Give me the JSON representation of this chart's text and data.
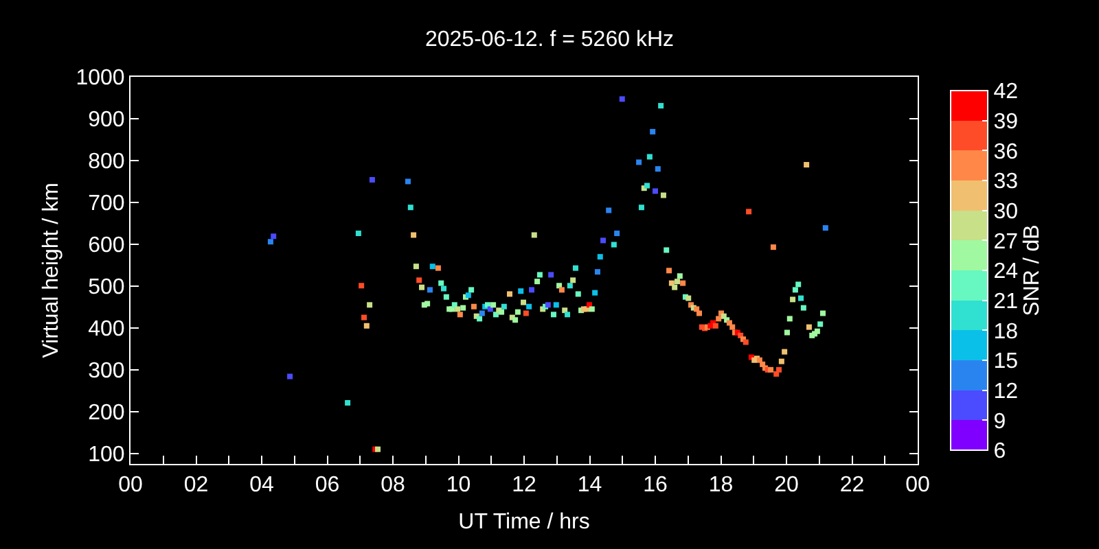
{
  "chart_data": {
    "type": "scatter",
    "title": "2025-06-12. f = 5260 kHz",
    "xlabel": "UT Time / hrs",
    "ylabel": "Virtual height / km",
    "clabel": "SNR / dB",
    "xlim": [
      0,
      24
    ],
    "xticks": [
      {
        "value": 0,
        "label": "00"
      },
      {
        "value": 1,
        "label": null
      },
      {
        "value": 2,
        "label": "02"
      },
      {
        "value": 3,
        "label": null
      },
      {
        "value": 4,
        "label": "04"
      },
      {
        "value": 5,
        "label": null
      },
      {
        "value": 6,
        "label": "06"
      },
      {
        "value": 7,
        "label": null
      },
      {
        "value": 8,
        "label": "08"
      },
      {
        "value": 9,
        "label": null
      },
      {
        "value": 10,
        "label": "10"
      },
      {
        "value": 11,
        "label": null
      },
      {
        "value": 12,
        "label": "12"
      },
      {
        "value": 13,
        "label": null
      },
      {
        "value": 14,
        "label": "14"
      },
      {
        "value": 15,
        "label": null
      },
      {
        "value": 16,
        "label": "16"
      },
      {
        "value": 17,
        "label": null
      },
      {
        "value": 18,
        "label": "18"
      },
      {
        "value": 19,
        "label": null
      },
      {
        "value": 20,
        "label": "20"
      },
      {
        "value": 21,
        "label": null
      },
      {
        "value": 22,
        "label": "22"
      },
      {
        "value": 23,
        "label": null
      },
      {
        "value": 24,
        "label": "00"
      }
    ],
    "ylim": [
      75,
      1000
    ],
    "yticks": [
      100,
      200,
      300,
      400,
      500,
      600,
      700,
      800,
      900,
      1000
    ],
    "clim": [
      6,
      42
    ],
    "cticks": [
      6,
      9,
      12,
      15,
      18,
      21,
      24,
      27,
      30,
      33,
      36,
      39,
      42
    ],
    "grid": false,
    "legend": false,
    "marker": "square",
    "x": [
      4.27,
      4.36,
      4.86,
      6.62,
      6.95,
      7.04,
      7.12,
      7.2,
      7.29,
      7.37,
      7.46,
      7.54,
      8.46,
      8.54,
      8.63,
      8.71,
      8.8,
      8.88,
      8.96,
      9.05,
      9.13,
      9.21,
      9.38,
      9.47,
      9.55,
      9.63,
      9.72,
      9.8,
      9.88,
      9.97,
      10.05,
      10.14,
      10.22,
      10.3,
      10.39,
      10.47,
      10.55,
      10.64,
      10.72,
      10.81,
      10.89,
      10.97,
      11.06,
      11.14,
      11.23,
      11.31,
      11.39,
      11.56,
      11.64,
      11.73,
      11.81,
      11.9,
      11.98,
      12.06,
      12.15,
      12.23,
      12.31,
      12.4,
      12.48,
      12.57,
      12.65,
      12.73,
      12.82,
      12.9,
      12.98,
      13.07,
      13.15,
      13.24,
      13.32,
      13.4,
      13.49,
      13.57,
      13.65,
      13.74,
      13.82,
      13.91,
      13.99,
      14.07,
      14.16,
      14.24,
      14.32,
      14.41,
      14.58,
      14.74,
      14.83,
      14.99,
      15.5,
      15.58,
      15.66,
      15.75,
      15.83,
      15.92,
      16,
      16.08,
      16.17,
      16.25,
      16.34,
      16.42,
      16.5,
      16.59,
      16.67,
      16.75,
      16.84,
      16.92,
      17.01,
      17.09,
      17.17,
      17.26,
      17.34,
      17.42,
      17.51,
      17.59,
      17.68,
      17.76,
      17.84,
      17.93,
      18.01,
      18.09,
      18.18,
      18.26,
      18.35,
      18.43,
      18.51,
      18.6,
      18.68,
      18.76,
      18.85,
      18.93,
      19.02,
      19.1,
      19.18,
      19.27,
      19.35,
      19.43,
      19.52,
      19.6,
      19.69,
      19.77,
      19.85,
      19.94,
      20.02,
      20.1,
      20.19,
      20.27,
      20.36,
      20.44,
      20.52,
      20.61,
      20.69,
      20.78,
      20.86,
      20.94,
      21.03,
      21.11,
      21.19
    ],
    "values": [
      606,
      619,
      284,
      221,
      626,
      501,
      425,
      405,
      455,
      754,
      110,
      110,
      750,
      688,
      622,
      547,
      514,
      497,
      455,
      458,
      491,
      547,
      543,
      507,
      494,
      474,
      445,
      445,
      455,
      445,
      432,
      448,
      474,
      478,
      491,
      451,
      428,
      422,
      435,
      451,
      455,
      445,
      455,
      432,
      442,
      438,
      451,
      481,
      425,
      419,
      438,
      488,
      461,
      435,
      451,
      491,
      622,
      511,
      527,
      445,
      451,
      455,
      527,
      432,
      455,
      501,
      491,
      442,
      432,
      501,
      514,
      543,
      481,
      442,
      445,
      445,
      455,
      445,
      484,
      534,
      570,
      609,
      681,
      599,
      626,
      947,
      796,
      688,
      734,
      740,
      809,
      869,
      727,
      780,
      931,
      717,
      586,
      537,
      507,
      497,
      511,
      524,
      507,
      474,
      471,
      455,
      448,
      445,
      435,
      402,
      399,
      402,
      405,
      412,
      405,
      422,
      435,
      428,
      419,
      412,
      402,
      389,
      389,
      382,
      373,
      366,
      678,
      330,
      323,
      327,
      323,
      313,
      304,
      300,
      300,
      593,
      290,
      300,
      320,
      343,
      389,
      422,
      468,
      491,
      504,
      471,
      448,
      790,
      402,
      382,
      386,
      392,
      409,
      435,
      639
    ],
    "cvalues": [
      13.5,
      10.5,
      10.5,
      19.5,
      19.5,
      37.5,
      37.5,
      31.5,
      28.5,
      10.5,
      40.5,
      28.5,
      13.5,
      19.5,
      31.5,
      28.5,
      37.5,
      28.5,
      25.5,
      25.5,
      13.5,
      16.5,
      34.5,
      22.5,
      19.5,
      22.5,
      25.5,
      25.5,
      22.5,
      28.5,
      34.5,
      25.5,
      25.5,
      16.5,
      22.5,
      34.5,
      28.5,
      22.5,
      13.5,
      16.5,
      22.5,
      10.5,
      25.5,
      22.5,
      28.5,
      25.5,
      19.5,
      31.5,
      28.5,
      25.5,
      25.5,
      16.5,
      28.5,
      37.5,
      16.5,
      10.5,
      28.5,
      25.5,
      22.5,
      28.5,
      22.5,
      10.5,
      10.5,
      22.5,
      16.5,
      25.5,
      34.5,
      28.5,
      19.5,
      19.5,
      28.5,
      19.5,
      22.5,
      25.5,
      31.5,
      31.5,
      40.5,
      25.5,
      16.5,
      13.5,
      16.5,
      10.5,
      13.5,
      19.5,
      13.5,
      10.5,
      13.5,
      19.5,
      28.5,
      19.5,
      19.5,
      13.5,
      10.5,
      13.5,
      19.5,
      28.5,
      22.5,
      34.5,
      31.5,
      28.5,
      28.5,
      25.5,
      34.5,
      22.5,
      28.5,
      34.5,
      28.5,
      34.5,
      34.5,
      37.5,
      37.5,
      34.5,
      40.5,
      40.5,
      37.5,
      34.5,
      34.5,
      28.5,
      25.5,
      34.5,
      34.5,
      34.5,
      40.5,
      37.5,
      34.5,
      37.5,
      37.5,
      40.5,
      31.5,
      31.5,
      34.5,
      34.5,
      34.5,
      37.5,
      34.5,
      34.5,
      37.5,
      37.5,
      31.5,
      31.5,
      25.5,
      25.5,
      28.5,
      22.5,
      22.5,
      19.5,
      22.5,
      31.5,
      31.5,
      25.5,
      25.5,
      25.5,
      22.5,
      25.5,
      13.5
    ]
  }
}
